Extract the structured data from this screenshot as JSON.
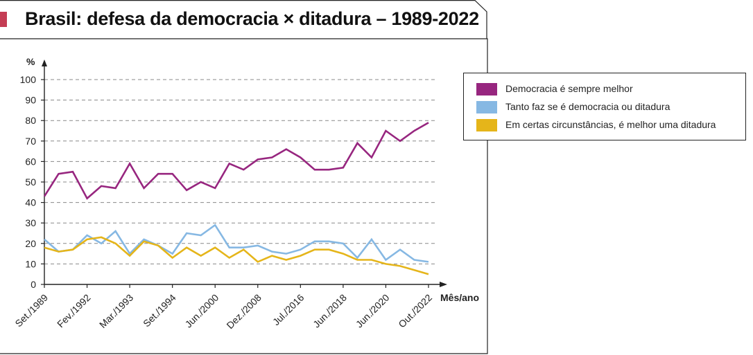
{
  "title": "Brasil: defesa da democracia × ditadura – 1989-2022",
  "colors": {
    "democracia": "#97267f",
    "tanto_faz": "#86b8e3",
    "certas": "#e5b51a",
    "tab": "#c43d54"
  },
  "chart_data": {
    "type": "line",
    "ylabel": "%",
    "xlabel": "Mês/ano",
    "ylim": [
      0,
      100
    ],
    "yticks": [
      0,
      10,
      20,
      30,
      40,
      50,
      60,
      70,
      80,
      90,
      100
    ],
    "grid": "horizontal dashed",
    "legend_position": "right",
    "xtick_labels": [
      "Set./1989",
      "Fev./1992",
      "Mar./1993",
      "Set./1994",
      "Jun./2000",
      "Dez./2008",
      "Jul./2016",
      "Jun./2018",
      "Jun./2020",
      "Out./2022"
    ],
    "series": [
      {
        "name": "Democracia é sempre melhor",
        "values": [
          43,
          54,
          55,
          42,
          48,
          47,
          59,
          47,
          54,
          54,
          46,
          50,
          47,
          59,
          56,
          61,
          62,
          66,
          62,
          56,
          56,
          57,
          69,
          62,
          75,
          70,
          75,
          79
        ]
      },
      {
        "name": "Tanto faz se é democracia ou ditadura",
        "values": [
          22,
          16,
          17,
          24,
          20,
          26,
          15,
          22,
          19,
          15,
          25,
          24,
          29,
          18,
          18,
          19,
          16,
          15,
          17,
          21,
          21,
          20,
          13,
          22,
          12,
          17,
          12,
          11
        ]
      },
      {
        "name": "Em certas circunstâncias, é melhor uma ditadura",
        "values": [
          18,
          16,
          17,
          22,
          23,
          20,
          14,
          21,
          19,
          13,
          18,
          14,
          18,
          13,
          17,
          11,
          14,
          12,
          14,
          17,
          17,
          15,
          12,
          12,
          10,
          9,
          7,
          5
        ]
      }
    ]
  }
}
